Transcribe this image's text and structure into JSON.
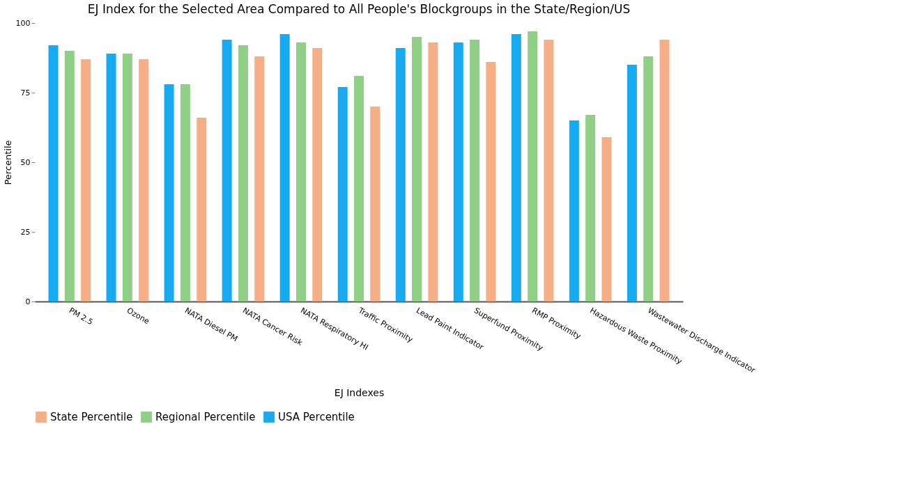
{
  "chart_data": {
    "type": "bar",
    "title": "EJ Index for the Selected Area Compared to All People's Blockgroups in the State/Region/US",
    "xlabel": "EJ Indexes",
    "ylabel": "Percentile",
    "categories": [
      "PM 2.5",
      "Ozone",
      "NATA Diesel PM",
      "NATA Cancer Risk",
      "NATA Respiratory HI",
      "Traffic Proximity",
      "Lead Paint Indicator",
      "Superfund Proximity",
      "RMP Proximity",
      "Hazardous Waste Proximity",
      "Wastewater Discharge Indicator"
    ],
    "series": [
      {
        "name": "USA Percentile",
        "color": "#16aaf0",
        "values": [
          92,
          89,
          78,
          94,
          96,
          77,
          91,
          93,
          96,
          65,
          85
        ]
      },
      {
        "name": "Regional Percentile",
        "color": "#8fcf86",
        "values": [
          90,
          89,
          78,
          92,
          93,
          81,
          95,
          94,
          97,
          67,
          88
        ]
      },
      {
        "name": "State Percentile",
        "color": "#f6ae87",
        "values": [
          87,
          87,
          66,
          88,
          91,
          70,
          93,
          86,
          94,
          59,
          94
        ]
      }
    ],
    "ylim": [
      0,
      100
    ],
    "yticks": [
      0,
      25,
      50,
      75,
      100
    ],
    "grid": false,
    "legend": "bottom"
  }
}
